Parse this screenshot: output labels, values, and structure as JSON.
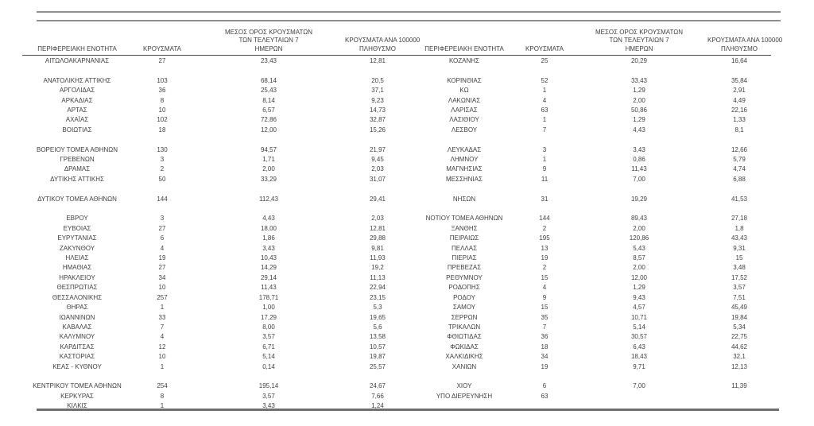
{
  "colors": {
    "text": "#3f3f3f",
    "top_rule": "#8f8f8f",
    "header_rule": "#4a4a4a",
    "bottom_rule": "#6f6f6f",
    "background": "#ffffff"
  },
  "chart_data": {
    "type": "table",
    "description_visible_text_only": "Two side-by-side table halves sharing identical column headers; comma is the decimal separator; blank rows separate groups.",
    "column_headers": {
      "region": "ΠΕΡΙΦΕΡΕΙΑΚΗ ΕΝΟΤΗΤΑ",
      "cases": "ΚΡΟΥΣΜΑΤΑ",
      "avg7": "ΜΕΣΟΣ ΟΡΟΣ ΚΡΟΥΣΜΑΤΩΝ\nΤΩΝ ΤΕΛΕΥΤΑΙΩΝ 7\nΗΜΕΡΩΝ",
      "per100k": "ΚΡΟΥΣΜΑΤΑ ΑΝΑ 100000\nΠΛΗΘΥΣΜΟ"
    },
    "columns": [
      "ΠΕΡΙΦΕΡΕΙΑΚΗ ΕΝΟΤΗΤΑ",
      "ΚΡΟΥΣΜΑΤΑ",
      "ΜΕΣΟΣ ΟΡΟΣ ΚΡΟΥΣΜΑΤΩΝ ΤΩΝ ΤΕΛΕΥΤΑΙΩΝ 7 ΗΜΕΡΩΝ",
      "ΚΡΟΥΣΜΑΤΑ ΑΝΑ 100000 ΠΛΗΘΥΣΜΟ"
    ],
    "slots": [
      {
        "l": [
          "ΑΙΤΩΛΟΑΚΑΡΝΑΝΙΑΣ",
          "27",
          "23,43",
          "12,81"
        ],
        "r": [
          "ΚΟΖΑΝΗΣ",
          "25",
          "20,29",
          "16,64"
        ]
      },
      "spacer",
      {
        "l": [
          "ΑΝΑΤΟΛΙΚΗΣ ΑΤΤΙΚΗΣ",
          "103",
          "68,14",
          "20,5"
        ],
        "r": [
          "ΚΟΡΙΝΘΙΑΣ",
          "52",
          "33,43",
          "35,84"
        ]
      },
      {
        "l": [
          "ΑΡΓΟΛΙΔΑΣ",
          "36",
          "25,43",
          "37,1"
        ],
        "r": [
          "ΚΩ",
          "1",
          "1,29",
          "2,91"
        ]
      },
      {
        "l": [
          "ΑΡΚΑΔΙΑΣ",
          "8",
          "8,14",
          "9,23"
        ],
        "r": [
          "ΛΑΚΩΝΙΑΣ",
          "4",
          "2,00",
          "4,49"
        ]
      },
      {
        "l": [
          "ΑΡΤΑΣ",
          "10",
          "6,57",
          "14,73"
        ],
        "r": [
          "ΛΑΡΙΣΑΣ",
          "63",
          "50,86",
          "22,16"
        ]
      },
      {
        "l": [
          "ΑΧΑΪΑΣ",
          "102",
          "72,86",
          "32,87"
        ],
        "r": [
          "ΛΑΣΙΘΙΟΥ",
          "1",
          "1,29",
          "1,33"
        ]
      },
      {
        "l": [
          "ΒΟΙΩΤΙΑΣ",
          "18",
          "12,00",
          "15,26"
        ],
        "r": [
          "ΛΕΣΒΟΥ",
          "7",
          "4,43",
          "8,1"
        ]
      },
      "spacer",
      {
        "l": [
          "ΒΟΡΕΙΟΥ ΤΟΜΕΑ ΑΘΗΝΩΝ",
          "130",
          "94,57",
          "21,97"
        ],
        "r": [
          "ΛΕΥΚΑΔΑΣ",
          "3",
          "3,43",
          "12,66"
        ]
      },
      {
        "l": [
          "ΓΡΕΒΕΝΩΝ",
          "3",
          "1,71",
          "9,45"
        ],
        "r": [
          "ΛΗΜΝΟΥ",
          "1",
          "0,86",
          "5,79"
        ]
      },
      {
        "l": [
          "ΔΡΑΜΑΣ",
          "2",
          "2,00",
          "2,03"
        ],
        "r": [
          "ΜΑΓΝΗΣΙΑΣ",
          "9",
          "11,43",
          "4,74"
        ]
      },
      {
        "l": [
          "ΔΥΤΙΚΗΣ ΑΤΤΙΚΗΣ",
          "50",
          "33,29",
          "31,07"
        ],
        "r": [
          "ΜΕΣΣΗΝΙΑΣ",
          "11",
          "7,00",
          "6,88"
        ]
      },
      "spacer",
      {
        "l": [
          "ΔΥΤΙΚΟΥ ΤΟΜΕΑ ΑΘΗΝΩΝ",
          "144",
          "112,43",
          "29,41"
        ],
        "r": [
          "ΝΗΣΩΝ",
          "31",
          "19,29",
          "41,53"
        ]
      },
      "spacer",
      {
        "l": [
          "ΕΒΡΟΥ",
          "3",
          "4,43",
          "2,03"
        ],
        "r": [
          "ΝΟΤΙΟΥ ΤΟΜΕΑ ΑΘΗΝΩΝ",
          "144",
          "89,43",
          "27,18"
        ]
      },
      {
        "l": [
          "ΕΥΒΟΙΑΣ",
          "27",
          "18,00",
          "12,81"
        ],
        "r": [
          "ΞΑΝΘΗΣ",
          "2",
          "2,00",
          "1,8"
        ]
      },
      {
        "l": [
          "ΕΥΡΥΤΑΝΙΑΣ",
          "6",
          "1,86",
          "29,88"
        ],
        "r": [
          "ΠΕΙΡΑΙΩΣ",
          "195",
          "120,86",
          "43,43"
        ]
      },
      {
        "l": [
          "ΖΑΚΥΝΘΟΥ",
          "4",
          "3,43",
          "9,81"
        ],
        "r": [
          "ΠΕΛΛΑΣ",
          "13",
          "5,43",
          "9,31"
        ]
      },
      {
        "l": [
          "ΗΛΕΙΑΣ",
          "19",
          "10,43",
          "11,93"
        ],
        "r": [
          "ΠΙΕΡΙΑΣ",
          "19",
          "8,57",
          "15"
        ]
      },
      {
        "l": [
          "ΗΜΑΘΙΑΣ",
          "27",
          "14,29",
          "19,2"
        ],
        "r": [
          "ΠΡΕΒΕΖΑΣ",
          "2",
          "2,00",
          "3,48"
        ]
      },
      {
        "l": [
          "ΗΡΑΚΛΕΙΟΥ",
          "34",
          "29,14",
          "11,13"
        ],
        "r": [
          "ΡΕΘΥΜΝΟΥ",
          "15",
          "12,00",
          "17,52"
        ]
      },
      {
        "l": [
          "ΘΕΣΠΡΩΤΙΑΣ",
          "10",
          "11,43",
          "22,94"
        ],
        "r": [
          "ΡΟΔΟΠΗΣ",
          "4",
          "1,29",
          "3,57"
        ]
      },
      {
        "l": [
          "ΘΕΣΣΑΛΟΝΙΚΗΣ",
          "257",
          "178,71",
          "23,15"
        ],
        "r": [
          "ΡΟΔΟΥ",
          "9",
          "9,43",
          "7,51"
        ]
      },
      {
        "l": [
          "ΘΗΡΑΣ",
          "1",
          "1,00",
          "5,3"
        ],
        "r": [
          "ΣΑΜΟΥ",
          "15",
          "4,57",
          "45,49"
        ]
      },
      {
        "l": [
          "ΙΩΑΝΝΙΝΩΝ",
          "33",
          "17,29",
          "19,65"
        ],
        "r": [
          "ΣΕΡΡΩΝ",
          "35",
          "10,71",
          "19,84"
        ]
      },
      {
        "l": [
          "ΚΑΒΑΛΑΣ",
          "7",
          "8,00",
          "5,6"
        ],
        "r": [
          "ΤΡΙΚΑΛΩΝ",
          "7",
          "5,14",
          "5,34"
        ]
      },
      {
        "l": [
          "ΚΑΛΥΜΝΟΥ",
          "4",
          "3,57",
          "13,58"
        ],
        "r": [
          "ΦΘΙΩΤΙΔΑΣ",
          "36",
          "30,57",
          "22,75"
        ]
      },
      {
        "l": [
          "ΚΑΡΔΙΤΣΑΣ",
          "12",
          "6,71",
          "10,57"
        ],
        "r": [
          "ΦΩΚΙΔΑΣ",
          "18",
          "6,43",
          "44,62"
        ]
      },
      {
        "l": [
          "ΚΑΣΤΟΡΙΑΣ",
          "10",
          "5,14",
          "19,87"
        ],
        "r": [
          "ΧΑΛΚΙΔΙΚΗΣ",
          "34",
          "18,43",
          "32,1"
        ]
      },
      {
        "l": [
          "ΚΕΑΣ - ΚΥΘΝΟΥ",
          "1",
          "0,14",
          "25,57"
        ],
        "r": [
          "ΧΑΝΙΩΝ",
          "19",
          "9,71",
          "12,13"
        ]
      },
      "spacer",
      {
        "l": [
          "ΚΕΝΤΡΙΚΟΥ ΤΟΜΕΑ ΑΘΗΝΩΝ",
          "254",
          "195,14",
          "24,67"
        ],
        "r": [
          "ΧΙΟΥ",
          "6",
          "7,00",
          "11,39"
        ]
      },
      {
        "l": [
          "ΚΕΡΚΥΡΑΣ",
          "8",
          "3,57",
          "7,66"
        ],
        "r": [
          "ΥΠΟ ΔΙΕΡΕΥΝΗΣΗ",
          "63",
          "",
          ""
        ]
      },
      {
        "l": [
          "ΚΙΛΚΙΣ",
          "1",
          "3,43",
          "1,24"
        ],
        "r": [
          "",
          "",
          "",
          ""
        ]
      }
    ]
  }
}
